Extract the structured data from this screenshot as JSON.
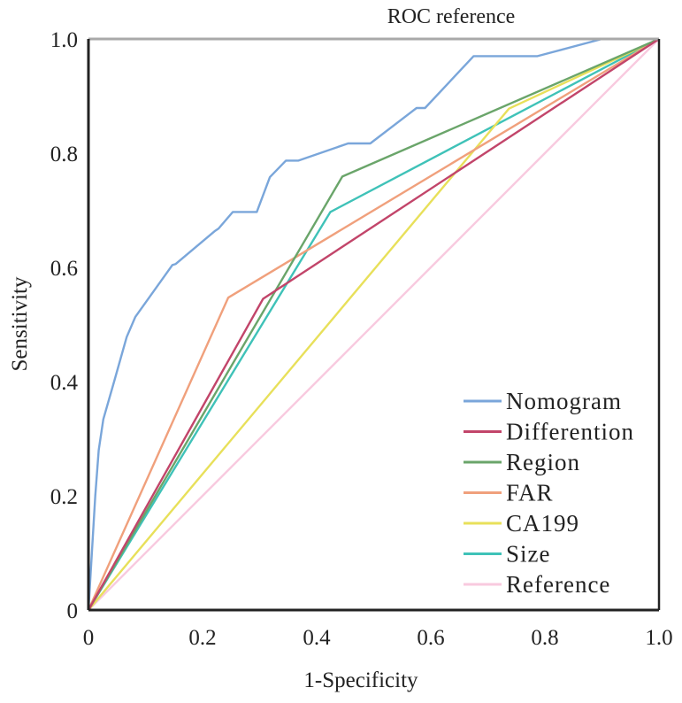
{
  "chart_data": {
    "type": "line",
    "title": "ROC reference",
    "xlabel": "1-Specificity",
    "ylabel": "Sensitivity",
    "xlim": [
      0,
      1
    ],
    "ylim": [
      0,
      1
    ],
    "x_ticks": [
      0,
      0.2,
      0.4,
      0.6,
      0.8,
      1.0
    ],
    "x_tick_labels": [
      "0",
      "0.2",
      "0.4",
      "0.6",
      "0.8",
      "1.0"
    ],
    "y_ticks": [
      0,
      0.2,
      0.4,
      0.6,
      0.8,
      1.0
    ],
    "y_tick_labels": [
      "0",
      "0.2",
      "0.4",
      "0.6",
      "0.8",
      "1.0"
    ],
    "grid": false,
    "legend_position": "bottom-right",
    "series": [
      {
        "name": "Nomogram",
        "color": "#7aa6da",
        "x": [
          0,
          0.012,
          0.018,
          0.026,
          0.045,
          0.067,
          0.082,
          0.147,
          0.153,
          0.222,
          0.228,
          0.253,
          0.295,
          0.318,
          0.346,
          0.368,
          0.455,
          0.494,
          0.575,
          0.59,
          0.675,
          0.787,
          0.9,
          1.0
        ],
        "y": [
          0,
          0.2,
          0.28,
          0.334,
          0.4,
          0.478,
          0.513,
          0.604,
          0.606,
          0.664,
          0.668,
          0.697,
          0.697,
          0.758,
          0.787,
          0.787,
          0.817,
          0.817,
          0.879,
          0.879,
          0.97,
          0.97,
          1.0,
          1.0
        ]
      },
      {
        "name": "Differention",
        "color": "#c2456a",
        "x": [
          0,
          0.306,
          1.0
        ],
        "y": [
          0,
          0.545,
          1.0
        ]
      },
      {
        "name": "Region",
        "color": "#6aa56a",
        "x": [
          0,
          0.445,
          1.0
        ],
        "y": [
          0,
          0.759,
          1.0
        ]
      },
      {
        "name": "FAR",
        "color": "#f0a07c",
        "x": [
          0,
          0.245,
          1.0
        ],
        "y": [
          0,
          0.547,
          1.0
        ]
      },
      {
        "name": "CA199",
        "color": "#e8e05a",
        "x": [
          0,
          0.737,
          1.0
        ],
        "y": [
          0,
          0.878,
          1.0
        ]
      },
      {
        "name": "Size",
        "color": "#3fc2b8",
        "x": [
          0,
          0.424,
          1.0
        ],
        "y": [
          0,
          0.697,
          1.0
        ]
      },
      {
        "name": "Reference",
        "color": "#f8cadf",
        "x": [
          0,
          1.0
        ],
        "y": [
          0,
          1.0
        ]
      }
    ]
  }
}
